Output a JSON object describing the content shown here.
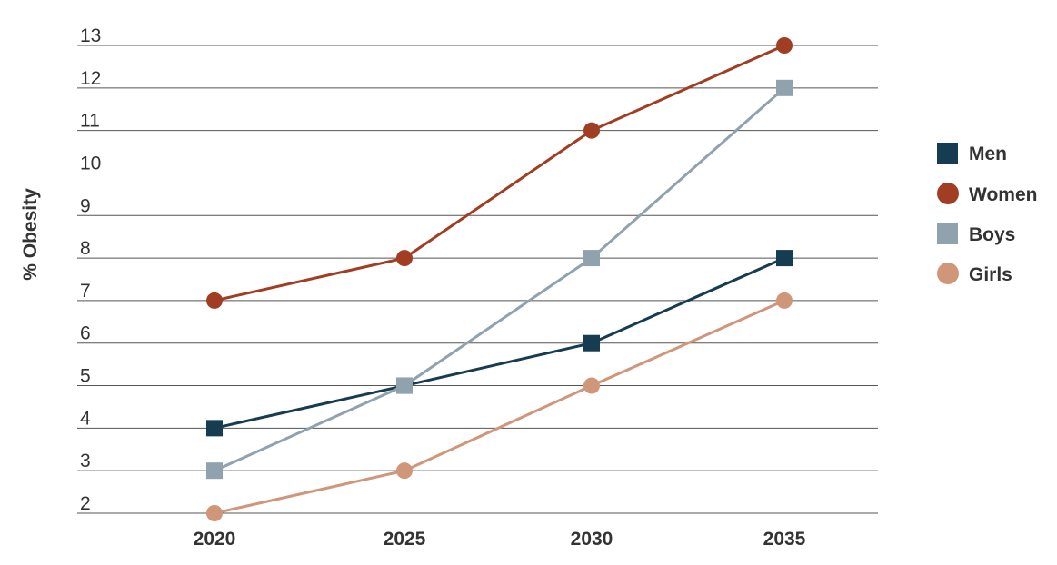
{
  "chart_data": {
    "type": "line",
    "ylabel": "% Obesity",
    "xlabel": "",
    "categories": [
      "2020",
      "2025",
      "2030",
      "2035"
    ],
    "ylim": [
      2,
      13
    ],
    "yticks": [
      2,
      3,
      4,
      5,
      6,
      7,
      8,
      9,
      10,
      11,
      12,
      13
    ],
    "grid": true,
    "legend_position": "right",
    "series": [
      {
        "name": "Men",
        "color": "#163c52",
        "marker": "square",
        "values": [
          4,
          5,
          6,
          8
        ]
      },
      {
        "name": "Women",
        "color": "#a13d22",
        "marker": "circle",
        "values": [
          7,
          8,
          11,
          13
        ]
      },
      {
        "name": "Boys",
        "color": "#8fa2ae",
        "marker": "square",
        "values": [
          3,
          5,
          8,
          12
        ]
      },
      {
        "name": "Girls",
        "color": "#cf967a",
        "marker": "circle",
        "values": [
          2,
          3,
          5,
          7
        ]
      }
    ]
  }
}
